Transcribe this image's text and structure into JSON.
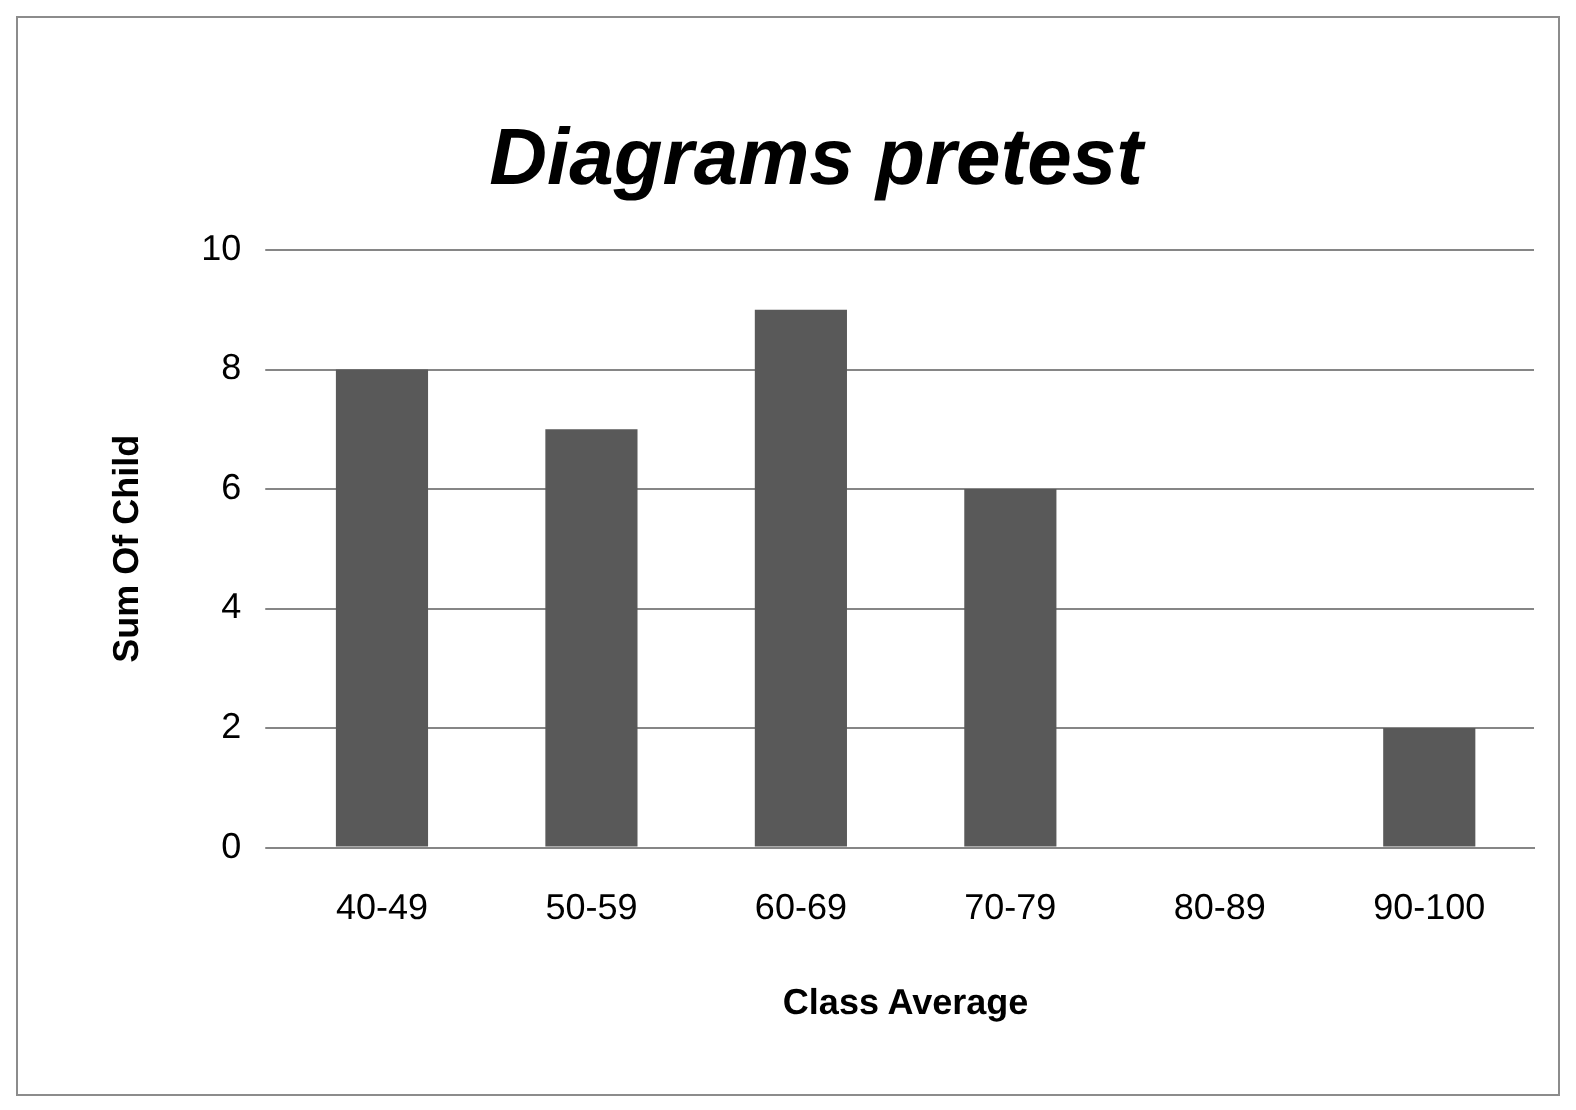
{
  "chart_data": {
    "type": "bar",
    "title": "Diagrams pretest",
    "xlabel": "Class Average",
    "ylabel": "Sum Of Child",
    "categories": [
      "40-49",
      "50-59",
      "60-69",
      "70-79",
      "80-89",
      "90-100"
    ],
    "values": [
      8,
      7,
      9,
      6,
      0,
      2
    ],
    "color": "#595959",
    "ylim": [
      0,
      10
    ],
    "yticks": [
      0,
      2,
      4,
      6,
      8,
      10
    ],
    "grid": "y",
    "legend": false
  }
}
